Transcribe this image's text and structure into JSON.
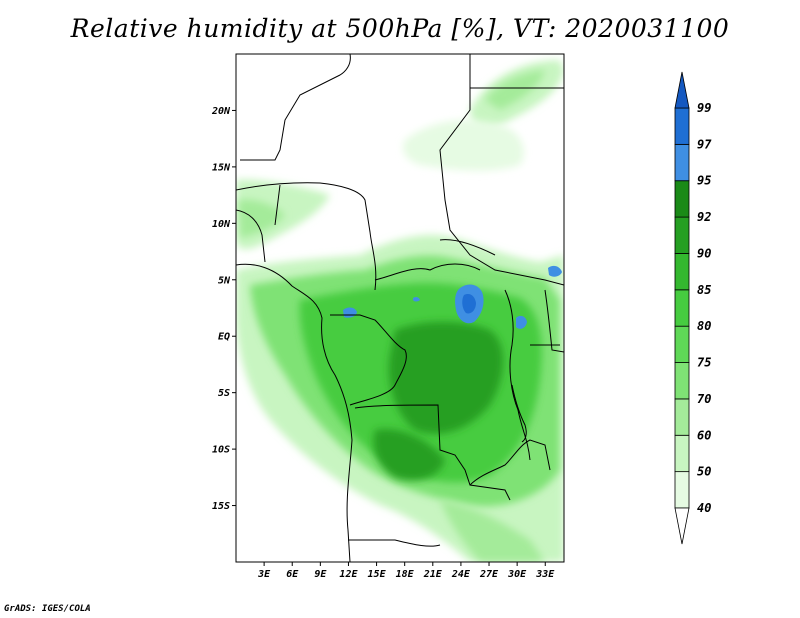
{
  "title": "Relative humidity at 500hPa [%], VT: 2020031100",
  "footer": "GrADS: IGES/COLA",
  "axes": {
    "lat_labels": [
      "20N",
      "15N",
      "10N",
      "5N",
      "EQ",
      "5S",
      "10S",
      "15S"
    ],
    "lat_values": [
      20,
      15,
      10,
      5,
      0,
      -5,
      -10,
      -15
    ],
    "lon_labels": [
      "3E",
      "6E",
      "9E",
      "12E",
      "15E",
      "18E",
      "21E",
      "24E",
      "27E",
      "30E",
      "33E"
    ],
    "lon_values": [
      3,
      6,
      9,
      12,
      15,
      18,
      21,
      24,
      27,
      30,
      33
    ],
    "lon_range": [
      0,
      35
    ],
    "lat_range": [
      -20,
      25
    ]
  },
  "legend": {
    "levels": [
      "40",
      "50",
      "60",
      "70",
      "75",
      "80",
      "85",
      "90",
      "92",
      "95",
      "97",
      "99"
    ],
    "colors": [
      "#e6fbe3",
      "#c8f5c1",
      "#a4eb9a",
      "#7fe275",
      "#5fd857",
      "#46cc40",
      "#34b82f",
      "#259f22",
      "#1a8a17",
      "#3f8fe3",
      "#1f6fd4",
      "#1458c0"
    ]
  },
  "colors": {
    "border": "#000000",
    "background": "#ffffff"
  }
}
